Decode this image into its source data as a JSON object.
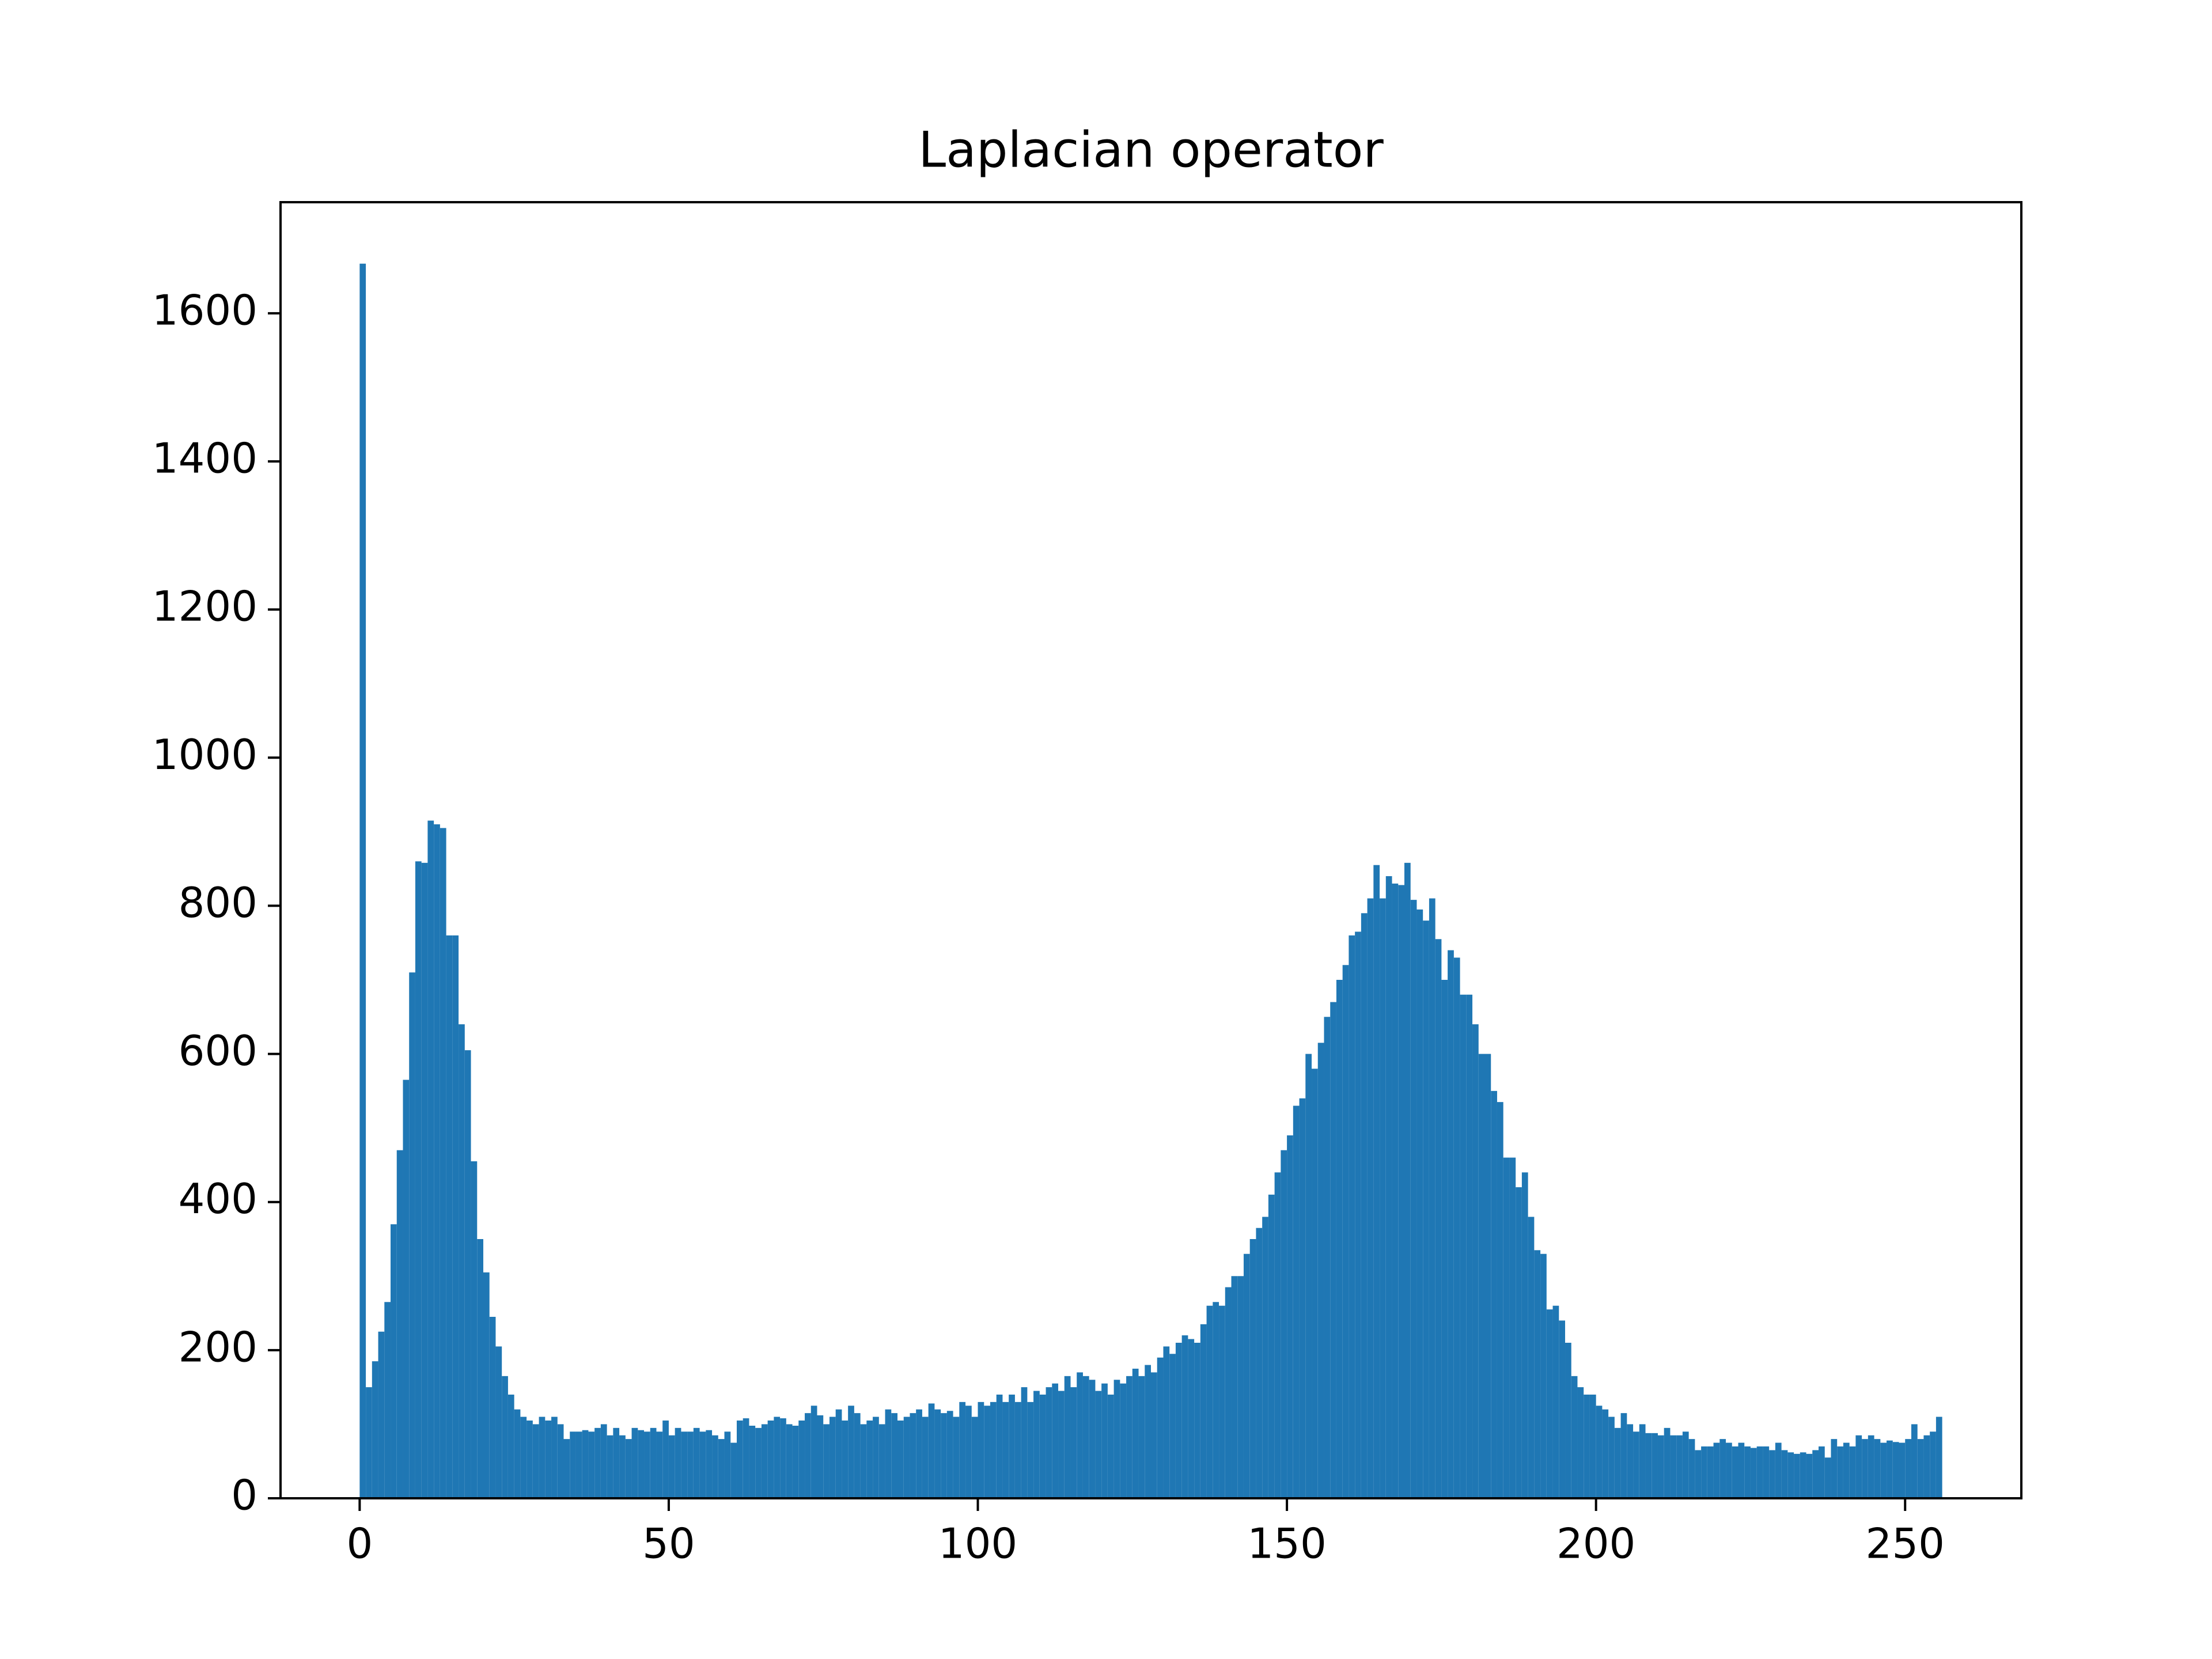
{
  "chart_data": {
    "type": "histogram",
    "title": "Laplacian operator",
    "color": "#1f77b4",
    "bins": [
      0,
      1,
      2,
      3,
      4,
      5,
      6,
      7,
      8,
      9,
      10,
      11,
      12,
      13,
      14,
      15,
      16,
      17,
      18,
      19,
      20,
      21,
      22,
      23,
      24,
      25,
      26,
      27,
      28,
      29,
      30,
      31,
      32,
      33,
      34,
      35,
      36,
      37,
      38,
      39,
      40,
      41,
      42,
      43,
      44,
      45,
      46,
      47,
      48,
      49,
      50,
      51,
      52,
      53,
      54,
      55,
      56,
      57,
      58,
      59,
      60,
      61,
      62,
      63,
      64,
      65,
      66,
      67,
      68,
      69,
      70,
      71,
      72,
      73,
      74,
      75,
      76,
      77,
      78,
      79,
      80,
      81,
      82,
      83,
      84,
      85,
      86,
      87,
      88,
      89,
      90,
      91,
      92,
      93,
      94,
      95,
      96,
      97,
      98,
      99,
      100,
      101,
      102,
      103,
      104,
      105,
      106,
      107,
      108,
      109,
      110,
      111,
      112,
      113,
      114,
      115,
      116,
      117,
      118,
      119,
      120,
      121,
      122,
      123,
      124,
      125,
      126,
      127,
      128,
      129,
      130,
      131,
      132,
      133,
      134,
      135,
      136,
      137,
      138,
      139,
      140,
      141,
      142,
      143,
      144,
      145,
      146,
      147,
      148,
      149,
      150,
      151,
      152,
      153,
      154,
      155,
      156,
      157,
      158,
      159,
      160,
      161,
      162,
      163,
      164,
      165,
      166,
      167,
      168,
      169,
      170,
      171,
      172,
      173,
      174,
      175,
      176,
      177,
      178,
      179,
      180,
      181,
      182,
      183,
      184,
      185,
      186,
      187,
      188,
      189,
      190,
      191,
      192,
      193,
      194,
      195,
      196,
      197,
      198,
      199,
      200,
      201,
      202,
      203,
      204,
      205,
      206,
      207,
      208,
      209,
      210,
      211,
      212,
      213,
      214,
      215,
      216,
      217,
      218,
      219,
      220,
      221,
      222,
      223,
      224,
      225,
      226,
      227,
      228,
      229,
      230,
      231,
      232,
      233,
      234,
      235,
      236,
      237,
      238,
      239,
      240,
      241,
      242,
      243,
      244,
      245,
      246,
      247,
      248,
      249,
      250,
      251,
      252,
      253,
      254,
      255,
      256
    ],
    "values": [
      1667,
      150,
      185,
      225,
      265,
      370,
      470,
      565,
      710,
      860,
      858,
      915,
      910,
      905,
      760,
      760,
      640,
      605,
      455,
      350,
      305,
      245,
      205,
      165,
      140,
      120,
      110,
      105,
      100,
      110,
      105,
      110,
      100,
      80,
      90,
      90,
      92,
      90,
      95,
      100,
      85,
      95,
      85,
      80,
      95,
      92,
      90,
      95,
      90,
      105,
      85,
      95,
      90,
      90,
      95,
      90,
      92,
      85,
      80,
      90,
      75,
      105,
      108,
      98,
      95,
      100,
      105,
      110,
      108,
      100,
      98,
      105,
      115,
      125,
      112,
      100,
      110,
      120,
      105,
      125,
      115,
      100,
      105,
      110,
      100,
      120,
      115,
      105,
      110,
      115,
      120,
      110,
      128,
      120,
      115,
      118,
      110,
      130,
      125,
      110,
      130,
      125,
      130,
      140,
      130,
      140,
      130,
      150,
      130,
      145,
      140,
      150,
      155,
      145,
      165,
      150,
      170,
      165,
      160,
      145,
      155,
      140,
      160,
      155,
      165,
      175,
      165,
      180,
      170,
      190,
      205,
      195,
      210,
      220,
      215,
      210,
      235,
      260,
      265,
      260,
      285,
      300,
      300,
      330,
      350,
      365,
      380,
      410,
      440,
      470,
      490,
      530,
      540,
      600,
      580,
      615,
      650,
      670,
      700,
      720,
      760,
      765,
      790,
      810,
      855,
      810,
      840,
      830,
      828,
      858,
      808,
      795,
      780,
      810,
      755,
      700,
      740,
      730,
      680,
      680,
      640,
      600,
      600,
      550,
      535,
      460,
      460,
      420,
      440,
      380,
      335,
      330,
      255,
      260,
      240,
      210,
      165,
      150,
      140,
      140,
      125,
      120,
      110,
      95,
      115,
      100,
      90,
      100,
      88,
      88,
      85,
      95,
      85,
      85,
      90,
      80,
      65,
      70,
      70,
      75,
      80,
      75,
      70,
      75,
      70,
      68,
      70,
      70,
      65,
      75,
      65,
      62,
      60,
      62,
      60,
      65,
      70,
      55,
      80,
      70,
      75,
      70,
      85,
      80,
      85,
      80,
      75,
      78,
      76,
      75,
      80,
      100,
      80,
      85,
      90,
      110
    ],
    "xlim": [
      -12.8,
      268.8
    ],
    "ylim": [
      0,
      1750
    ],
    "xticks": [
      0,
      50,
      100,
      150,
      200,
      250
    ],
    "yticks": [
      0,
      200,
      400,
      600,
      800,
      1000,
      1200,
      1400,
      1600
    ]
  }
}
